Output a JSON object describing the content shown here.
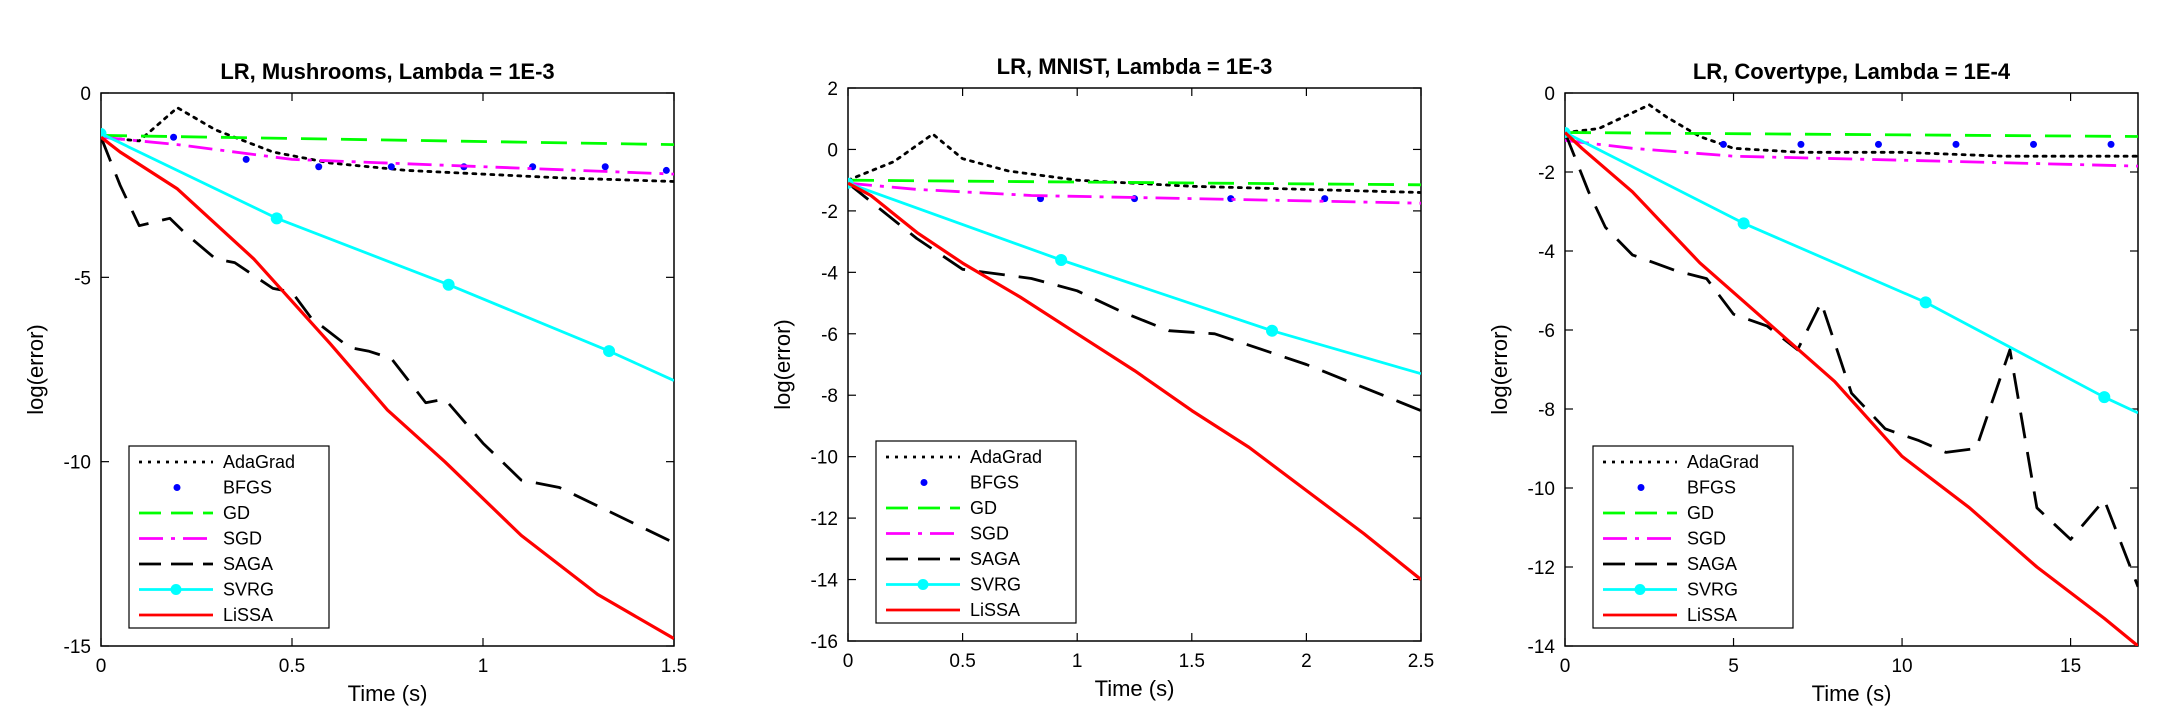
{
  "chart_data": [
    {
      "type": "line",
      "title": "LR, Mushrooms, Lambda = 1E-3",
      "xlabel": "Time (s)",
      "ylabel": "log(error)",
      "xlim": [
        0,
        1.5
      ],
      "ylim": [
        -15,
        0
      ],
      "xticks": [
        0,
        0.5,
        1,
        1.5
      ],
      "yticks": [
        -15,
        -10,
        -5,
        0
      ],
      "grid": false,
      "legend_position": "bottom-left",
      "series": [
        {
          "name": "AdaGrad",
          "color": "#000000",
          "style": "dotted",
          "marker": "",
          "x": [
            0,
            0.1,
            0.2,
            0.3,
            0.45,
            0.6,
            0.8,
            1.0,
            1.2,
            1.5
          ],
          "y": [
            -1.2,
            -1.3,
            -0.4,
            -1.0,
            -1.6,
            -1.9,
            -2.1,
            -2.2,
            -2.3,
            -2.4
          ]
        },
        {
          "name": "BFGS",
          "color": "#0000ff",
          "style": "markers",
          "marker": "dot",
          "x": [
            0.19,
            0.38,
            0.57,
            0.76,
            0.95,
            1.13,
            1.32,
            1.48
          ],
          "y": [
            -1.2,
            -1.8,
            -2.0,
            -2.0,
            -2.0,
            -2.0,
            -2.0,
            -2.1
          ]
        },
        {
          "name": "GD",
          "color": "#00ff00",
          "style": "dashed",
          "marker": "",
          "x": [
            0,
            1.5
          ],
          "y": [
            -1.15,
            -1.4
          ]
        },
        {
          "name": "SGD",
          "color": "#ff00ff",
          "style": "dashdot",
          "marker": "",
          "x": [
            0,
            0.2,
            0.5,
            1.0,
            1.5
          ],
          "y": [
            -1.2,
            -1.4,
            -1.8,
            -2.0,
            -2.2
          ]
        },
        {
          "name": "SAGA",
          "color": "#000000",
          "style": "dashed",
          "marker": "",
          "x": [
            0,
            0.05,
            0.1,
            0.18,
            0.22,
            0.3,
            0.35,
            0.45,
            0.5,
            0.55,
            0.65,
            0.7,
            0.76,
            0.85,
            0.9,
            1.0,
            1.1,
            1.2,
            1.3,
            1.4,
            1.5
          ],
          "y": [
            -1.2,
            -2.5,
            -3.6,
            -3.4,
            -3.8,
            -4.5,
            -4.6,
            -5.3,
            -5.4,
            -6.1,
            -6.9,
            -7.0,
            -7.2,
            -8.4,
            -8.3,
            -9.5,
            -10.5,
            -10.7,
            -11.2,
            -11.7,
            -12.2
          ]
        },
        {
          "name": "SVRG",
          "color": "#00ffff",
          "style": "solid",
          "marker": "circle",
          "x": [
            0,
            0.46,
            0.91,
            1.33,
            1.5
          ],
          "y": [
            -1.1,
            -3.4,
            -5.2,
            -7.0,
            -7.8
          ]
        },
        {
          "name": "LiSSA",
          "color": "#ff0000",
          "style": "solid",
          "marker": "",
          "x": [
            0,
            0.05,
            0.2,
            0.4,
            0.6,
            0.75,
            0.9,
            1.1,
            1.3,
            1.5
          ],
          "y": [
            -1.2,
            -1.6,
            -2.6,
            -4.5,
            -6.8,
            -8.6,
            -10.0,
            -12.0,
            -13.6,
            -14.8
          ]
        }
      ]
    },
    {
      "type": "line",
      "title": "LR, MNIST, Lambda = 1E-3",
      "xlabel": "Time (s)",
      "ylabel": "log(error)",
      "xlim": [
        0,
        2.5
      ],
      "ylim": [
        -16,
        2
      ],
      "xticks": [
        0,
        0.5,
        1,
        1.5,
        2,
        2.5
      ],
      "yticks": [
        -16,
        -14,
        -12,
        -10,
        -8,
        -6,
        -4,
        -2,
        0,
        2
      ],
      "grid": false,
      "legend_position": "bottom-left",
      "series": [
        {
          "name": "AdaGrad",
          "color": "#000000",
          "style": "dotted",
          "marker": "",
          "x": [
            0,
            0.2,
            0.37,
            0.5,
            0.7,
            1.0,
            1.5,
            2.0,
            2.5
          ],
          "y": [
            -1.0,
            -0.4,
            0.5,
            -0.3,
            -0.7,
            -1.0,
            -1.2,
            -1.3,
            -1.4
          ]
        },
        {
          "name": "BFGS",
          "color": "#0000ff",
          "style": "markers",
          "marker": "dot",
          "x": [
            0.84,
            1.25,
            1.67,
            2.08
          ],
          "y": [
            -1.6,
            -1.6,
            -1.6,
            -1.6
          ]
        },
        {
          "name": "GD",
          "color": "#00ff00",
          "style": "dashed",
          "marker": "",
          "x": [
            0,
            2.5
          ],
          "y": [
            -1.0,
            -1.15
          ]
        },
        {
          "name": "SGD",
          "color": "#ff00ff",
          "style": "dashdot",
          "marker": "",
          "x": [
            0,
            0.3,
            0.8,
            1.5,
            2.5
          ],
          "y": [
            -1.1,
            -1.3,
            -1.5,
            -1.6,
            -1.75
          ]
        },
        {
          "name": "SAGA",
          "color": "#000000",
          "style": "dashed",
          "marker": "",
          "x": [
            0,
            0.15,
            0.3,
            0.5,
            0.7,
            0.8,
            1.0,
            1.2,
            1.4,
            1.6,
            1.8,
            2.0,
            2.2,
            2.5
          ],
          "y": [
            -1.1,
            -2.0,
            -2.9,
            -3.9,
            -4.1,
            -4.2,
            -4.6,
            -5.3,
            -5.9,
            -6.0,
            -6.5,
            -7.0,
            -7.6,
            -8.5
          ]
        },
        {
          "name": "SVRG",
          "color": "#00ffff",
          "style": "solid",
          "marker": "circle",
          "x": [
            0,
            0.93,
            1.85,
            2.5
          ],
          "y": [
            -1.1,
            -3.6,
            -5.9,
            -7.3
          ]
        },
        {
          "name": "LiSSA",
          "color": "#ff0000",
          "style": "solid",
          "marker": "",
          "x": [
            0,
            0.1,
            0.3,
            0.5,
            0.75,
            1.0,
            1.25,
            1.5,
            1.75,
            2.0,
            2.25,
            2.5
          ],
          "y": [
            -1.1,
            -1.5,
            -2.7,
            -3.7,
            -4.8,
            -6.0,
            -7.2,
            -8.5,
            -9.7,
            -11.1,
            -12.5,
            -14.0
          ]
        }
      ]
    },
    {
      "type": "line",
      "title": "LR, Covertype, Lambda = 1E-4",
      "xlabel": "Time (s)",
      "ylabel": "log(error)",
      "xlim": [
        0,
        17
      ],
      "ylim": [
        -14,
        0
      ],
      "xticks": [
        0,
        5,
        10,
        15
      ],
      "yticks": [
        -14,
        -12,
        -10,
        -8,
        -6,
        -4,
        -2,
        0
      ],
      "grid": false,
      "legend_position": "bottom-left",
      "series": [
        {
          "name": "AdaGrad",
          "color": "#000000",
          "style": "dotted",
          "marker": "",
          "x": [
            0,
            1.0,
            2.0,
            2.5,
            3.0,
            4.0,
            5.0,
            7.0,
            10.0,
            13.0,
            17.0
          ],
          "y": [
            -1.0,
            -0.9,
            -0.5,
            -0.3,
            -0.6,
            -1.1,
            -1.4,
            -1.5,
            -1.5,
            -1.6,
            -1.6
          ]
        },
        {
          "name": "BFGS",
          "color": "#0000ff",
          "style": "markers",
          "marker": "dot",
          "x": [
            4.7,
            7.0,
            9.3,
            11.6,
            13.9,
            16.2
          ],
          "y": [
            -1.3,
            -1.3,
            -1.3,
            -1.3,
            -1.3,
            -1.3
          ]
        },
        {
          "name": "GD",
          "color": "#00ff00",
          "style": "dashed",
          "marker": "",
          "x": [
            0,
            17
          ],
          "y": [
            -1.0,
            -1.1
          ]
        },
        {
          "name": "SGD",
          "color": "#ff00ff",
          "style": "dashdot",
          "marker": "",
          "x": [
            0,
            2,
            5,
            10,
            17
          ],
          "y": [
            -1.2,
            -1.4,
            -1.6,
            -1.7,
            -1.85
          ]
        },
        {
          "name": "SAGA",
          "color": "#000000",
          "style": "dashed",
          "marker": "",
          "x": [
            0,
            0.7,
            1.2,
            2.0,
            3.3,
            4.2,
            5.0,
            6.0,
            6.9,
            7.6,
            8.5,
            9.5,
            10.5,
            11.3,
            12.2,
            13.2,
            14.0,
            15.0,
            16.0,
            17.0
          ],
          "y": [
            -1.0,
            -2.5,
            -3.4,
            -4.1,
            -4.5,
            -4.7,
            -5.6,
            -5.9,
            -6.5,
            -5.3,
            -7.6,
            -8.5,
            -8.8,
            -9.1,
            -9.0,
            -6.5,
            -10.5,
            -11.3,
            -10.3,
            -12.5
          ]
        },
        {
          "name": "SVRG",
          "color": "#00ffff",
          "style": "solid",
          "marker": "circle",
          "x": [
            0,
            5.3,
            10.7,
            16.0,
            17.0
          ],
          "y": [
            -1.0,
            -3.3,
            -5.3,
            -7.7,
            -8.1
          ]
        },
        {
          "name": "LiSSA",
          "color": "#ff0000",
          "style": "solid",
          "marker": "",
          "x": [
            0,
            0.5,
            2.0,
            4.0,
            6.0,
            8.0,
            10.0,
            12.0,
            14.0,
            16.0,
            17.0
          ],
          "y": [
            -1.0,
            -1.4,
            -2.5,
            -4.3,
            -5.8,
            -7.3,
            -9.2,
            -10.5,
            -12.0,
            -13.3,
            -14.0
          ]
        }
      ]
    }
  ]
}
